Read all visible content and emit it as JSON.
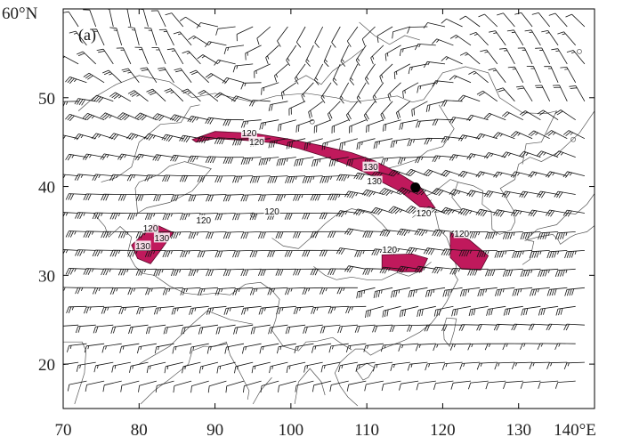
{
  "panel_label": "(a)",
  "x_axis": {
    "ticks": [
      {
        "lon": 70,
        "label": "70"
      },
      {
        "lon": 80,
        "label": "80"
      },
      {
        "lon": 90,
        "label": "90"
      },
      {
        "lon": 100,
        "label": "100"
      },
      {
        "lon": 110,
        "label": "110"
      },
      {
        "lon": 120,
        "label": "120"
      },
      {
        "lon": 130,
        "label": "130"
      },
      {
        "lon": 140,
        "label": "140°E"
      }
    ],
    "range": [
      70,
      140
    ]
  },
  "y_axis": {
    "ticks": [
      {
        "lat": 20,
        "label": "20"
      },
      {
        "lat": 30,
        "label": "30"
      },
      {
        "lat": 40,
        "label": "40"
      },
      {
        "lat": 50,
        "label": "50"
      },
      {
        "lat": 60,
        "label": "60°N"
      }
    ],
    "range": [
      15,
      60
    ]
  },
  "colors": {
    "jet_fill": "#c0195c",
    "jet_outline": "#5a0a2a",
    "barb": "#111111",
    "coastline": "#555555",
    "frame": "#000000"
  },
  "station_marker": {
    "lon": 116.4,
    "lat": 39.9
  },
  "jet_regions": [
    {
      "name": "northern-jet",
      "outline": [
        [
          87,
          45.3
        ],
        [
          90,
          46.2
        ],
        [
          95,
          46
        ],
        [
          100,
          45.3
        ],
        [
          104,
          44.6
        ],
        [
          108,
          43.8
        ],
        [
          111,
          42.9
        ],
        [
          114,
          41.6
        ],
        [
          117,
          40
        ],
        [
          119,
          37.6
        ],
        [
          117,
          37.7
        ],
        [
          114.5,
          39.4
        ],
        [
          112,
          40.5
        ],
        [
          110,
          41.5
        ],
        [
          107,
          42.6
        ],
        [
          104,
          43.5
        ],
        [
          101,
          44.3
        ],
        [
          98,
          44.9
        ],
        [
          94,
          45.2
        ],
        [
          90,
          45.4
        ],
        [
          87.5,
          45
        ]
      ]
    },
    {
      "name": "tibet-jet",
      "outline": [
        [
          79,
          33.4
        ],
        [
          82,
          35.8
        ],
        [
          84.5,
          34.8
        ],
        [
          83,
          33
        ],
        [
          81.5,
          31.3
        ],
        [
          79.8,
          31.9
        ]
      ]
    },
    {
      "name": "yangtze-jet",
      "outline": [
        [
          112,
          32.3
        ],
        [
          116,
          32.4
        ],
        [
          118,
          31.9
        ],
        [
          117.2,
          30.4
        ],
        [
          114.5,
          30.4
        ],
        [
          112,
          30.8
        ]
      ]
    },
    {
      "name": "east-jet",
      "outline": [
        [
          121,
          34.8
        ],
        [
          123.5,
          34
        ],
        [
          126,
          32.2
        ],
        [
          125,
          30.6
        ],
        [
          122.5,
          30.7
        ],
        [
          121,
          32
        ]
      ]
    }
  ],
  "contour_labels": [
    {
      "text": "120",
      "lon": 94.5,
      "lat": 46
    },
    {
      "text": "120",
      "lon": 95.5,
      "lat": 45
    },
    {
      "text": "130",
      "lon": 110.5,
      "lat": 42.2
    },
    {
      "text": "130",
      "lon": 111,
      "lat": 40.6
    },
    {
      "text": "120",
      "lon": 117.5,
      "lat": 37
    },
    {
      "text": "120",
      "lon": 81.5,
      "lat": 35.3
    },
    {
      "text": "130",
      "lon": 83,
      "lat": 34.2
    },
    {
      "text": "130",
      "lon": 80.5,
      "lat": 33.3
    },
    {
      "text": "120",
      "lon": 88.5,
      "lat": 36.2
    },
    {
      "text": "120",
      "lon": 97.5,
      "lat": 37.2
    },
    {
      "text": "120",
      "lon": 113,
      "lat": 32.9
    },
    {
      "text": "120",
      "lon": 122.5,
      "lat": 34.7
    }
  ],
  "coastlines": [
    [
      [
        117.5,
        38.8
      ],
      [
        118.5,
        39.2
      ],
      [
        119.5,
        39.8
      ],
      [
        121,
        40.8
      ],
      [
        122,
        40.5
      ],
      [
        121.5,
        39.2
      ],
      [
        121.2,
        38.8
      ],
      [
        122.5,
        37.4
      ],
      [
        120.5,
        37.3
      ],
      [
        119,
        37.1
      ],
      [
        119.5,
        35.2
      ],
      [
        120.5,
        34.3
      ],
      [
        121.5,
        32
      ],
      [
        121.8,
        30.9
      ],
      [
        121.5,
        30.2
      ],
      [
        122,
        29.5
      ],
      [
        121.2,
        28.2
      ],
      [
        120.5,
        27
      ],
      [
        119.5,
        25.7
      ],
      [
        118.5,
        24.6
      ],
      [
        117,
        23.6
      ],
      [
        115,
        22.7
      ],
      [
        113.5,
        22.2
      ],
      [
        112,
        21.7
      ],
      [
        110.5,
        21
      ],
      [
        109.5,
        21.7
      ],
      [
        108.5,
        21.7
      ],
      [
        107.5,
        21
      ]
    ],
    [
      [
        122,
        40.5
      ],
      [
        124,
        40.1
      ],
      [
        125.3,
        39.5
      ],
      [
        125.2,
        38
      ],
      [
        126.4,
        37.2
      ],
      [
        126.5,
        35.2
      ],
      [
        127.5,
        34.6
      ],
      [
        129,
        35.1
      ],
      [
        129.5,
        36
      ],
      [
        129.4,
        37.2
      ],
      [
        128.5,
        38.5
      ],
      [
        127.6,
        39.8
      ],
      [
        129.5,
        40.8
      ],
      [
        130,
        42.5
      ],
      [
        131.5,
        43.3
      ],
      [
        133,
        42.8
      ],
      [
        135.5,
        44
      ],
      [
        138,
        46
      ],
      [
        140,
        48.5
      ]
    ],
    [
      [
        130.5,
        31.2
      ],
      [
        131.5,
        31.8
      ],
      [
        132,
        33.8
      ],
      [
        131,
        34
      ],
      [
        132.5,
        35.2
      ],
      [
        135,
        35.7
      ],
      [
        136.5,
        37
      ],
      [
        137.5,
        36.9
      ],
      [
        139,
        38
      ],
      [
        140,
        39.2
      ],
      [
        140,
        40.5
      ]
    ],
    [
      [
        130.8,
        33.9
      ],
      [
        132.5,
        34.3
      ],
      [
        134.5,
        34.6
      ],
      [
        135.2,
        34
      ],
      [
        135.5,
        33.5
      ],
      [
        136.8,
        34.3
      ],
      [
        137.5,
        34.6
      ],
      [
        139,
        34.9
      ],
      [
        140,
        35.6
      ]
    ],
    [
      [
        120.5,
        25.2
      ],
      [
        121.8,
        25.1
      ],
      [
        121.5,
        23.7
      ],
      [
        120.9,
        22
      ],
      [
        120.2,
        22.8
      ],
      [
        120.1,
        24
      ],
      [
        120.5,
        25.2
      ]
    ],
    [
      [
        108.6,
        19.3
      ],
      [
        110,
        20.1
      ],
      [
        111,
        19.6
      ],
      [
        110.2,
        18.5
      ],
      [
        109.5,
        18.2
      ],
      [
        108.6,
        19.3
      ]
    ],
    [
      [
        107.5,
        21
      ],
      [
        106.5,
        20.2
      ],
      [
        105.8,
        19
      ],
      [
        106.5,
        17.5
      ],
      [
        107.5,
        16.3
      ],
      [
        108.8,
        15.3
      ]
    ],
    [
      [
        71.5,
        15.5
      ],
      [
        72.8,
        19
      ],
      [
        73,
        21.5
      ],
      [
        72.5,
        22.5
      ],
      [
        69.5,
        22.5
      ],
      [
        67.5,
        24.5
      ]
    ],
    [
      [
        80.2,
        15.5
      ],
      [
        82,
        17
      ],
      [
        84,
        18.3
      ],
      [
        86.5,
        20
      ],
      [
        87,
        21.5
      ],
      [
        88.5,
        22
      ],
      [
        90,
        22
      ],
      [
        91.5,
        22.5
      ],
      [
        92,
        21
      ],
      [
        93,
        19.5
      ],
      [
        94.5,
        17
      ],
      [
        94.3,
        16
      ]
    ],
    [
      [
        79.8,
        37
      ],
      [
        81,
        37.6
      ],
      [
        84,
        38.2
      ],
      [
        87,
        39.5
      ],
      [
        89.5,
        42
      ],
      [
        86,
        42.8
      ],
      [
        84,
        42.3
      ],
      [
        82.5,
        41.3
      ],
      [
        80,
        40.5
      ],
      [
        79.5,
        39.8
      ],
      [
        79.8,
        37
      ]
    ],
    [
      [
        97.5,
        34.2
      ],
      [
        99,
        33.3
      ],
      [
        101,
        33
      ],
      [
        103,
        34.5
      ],
      [
        104.5,
        35.8
      ],
      [
        106,
        36.8
      ],
      [
        108,
        37.5
      ],
      [
        110.5,
        37
      ],
      [
        112,
        35.8
      ],
      [
        113,
        34.8
      ]
    ],
    [
      [
        72,
        48.5
      ],
      [
        74,
        50
      ],
      [
        77,
        51.5
      ],
      [
        80,
        52.5
      ],
      [
        84,
        51.8
      ],
      [
        87,
        50
      ],
      [
        90,
        50.5
      ],
      [
        92.5,
        50
      ],
      [
        95,
        49.5
      ],
      [
        98,
        50.2
      ],
      [
        102,
        50.5
      ],
      [
        106,
        50
      ],
      [
        108,
        49.5
      ],
      [
        111,
        49.8
      ],
      [
        114,
        50.2
      ],
      [
        116,
        49.5
      ],
      [
        117.5,
        49.8
      ],
      [
        120,
        52.8
      ],
      [
        123,
        53.5
      ],
      [
        126,
        52.8
      ],
      [
        127.5,
        50
      ],
      [
        130.5,
        48.3
      ],
      [
        133.5,
        48.2
      ],
      [
        135,
        48.5
      ],
      [
        133,
        45
      ],
      [
        131,
        44.8
      ],
      [
        130.5,
        42.5
      ]
    ],
    [
      [
        75,
        40.5
      ],
      [
        77,
        41
      ],
      [
        79,
        42.2
      ],
      [
        80,
        45
      ],
      [
        82.8,
        47
      ],
      [
        85.5,
        47.2
      ],
      [
        86.8,
        49
      ],
      [
        88,
        49.2
      ]
    ],
    [
      [
        100.5,
        51.8
      ],
      [
        102,
        52.5
      ],
      [
        104,
        51.5
      ],
      [
        105.5,
        53
      ],
      [
        108,
        54.5
      ],
      [
        109.5,
        55.5
      ]
    ],
    [
      [
        109,
        58.5
      ],
      [
        111,
        57
      ],
      [
        113,
        56
      ],
      [
        115,
        57
      ],
      [
        117,
        56.5
      ]
    ],
    [
      [
        74,
        37
      ],
      [
        75.5,
        35.5
      ],
      [
        76,
        34.3
      ],
      [
        77.5,
        35.5
      ],
      [
        79,
        34.3
      ],
      [
        78.5,
        32.5
      ],
      [
        79.5,
        31
      ],
      [
        80.5,
        30.2
      ],
      [
        82,
        30
      ],
      [
        84,
        28.8
      ],
      [
        86,
        28
      ],
      [
        88,
        27.8
      ],
      [
        90,
        28
      ],
      [
        92,
        27.8
      ],
      [
        94,
        29
      ],
      [
        96,
        29.2
      ],
      [
        97.5,
        28.3
      ],
      [
        98.5,
        27.3
      ],
      [
        98,
        25
      ],
      [
        97.5,
        23.8
      ],
      [
        99,
        22
      ],
      [
        101,
        21.5
      ],
      [
        102,
        22.5
      ],
      [
        103.5,
        22.6
      ],
      [
        105.5,
        23
      ],
      [
        106.5,
        22.4
      ],
      [
        108,
        21.6
      ]
    ],
    [
      [
        80,
        20
      ],
      [
        84,
        22
      ],
      [
        87,
        24.5
      ],
      [
        89,
        26
      ],
      [
        92,
        25
      ],
      [
        95,
        24.5
      ]
    ],
    [
      [
        103,
        31
      ],
      [
        104.5,
        30
      ],
      [
        106,
        29.5
      ],
      [
        108,
        29.8
      ],
      [
        110,
        29.5
      ],
      [
        112,
        29.5
      ],
      [
        114,
        30.3
      ],
      [
        115.5,
        29.9
      ],
      [
        117,
        30.5
      ],
      [
        118.5,
        31.5
      ]
    ],
    [
      [
        116,
        36.5
      ],
      [
        117.5,
        37.5
      ],
      [
        118.5,
        38.5
      ]
    ],
    [
      [
        111,
        40.8
      ],
      [
        112.5,
        42
      ],
      [
        114,
        42.3
      ],
      [
        116.5,
        43
      ],
      [
        118,
        44
      ],
      [
        120,
        44.5
      ],
      [
        121.5,
        46.5
      ],
      [
        120.5,
        47.8
      ],
      [
        119.5,
        49.2
      ]
    ],
    [
      [
        100.5,
        15.5
      ],
      [
        101,
        18
      ],
      [
        102.5,
        19.5
      ],
      [
        104,
        18
      ],
      [
        104.5,
        16.5
      ]
    ],
    [
      [
        95,
        15.5
      ],
      [
        96,
        17
      ],
      [
        97.5,
        18.5
      ]
    ]
  ],
  "small_islands": [
    {
      "lon": 102.8,
      "lat": 47.3
    },
    {
      "lon": 138,
      "lat": 55.2
    },
    {
      "lon": 137.2,
      "lat": 45.3
    },
    {
      "lon": 122.7,
      "lat": 32.2
    },
    {
      "lon": 95,
      "lat": 36.8
    }
  ]
}
